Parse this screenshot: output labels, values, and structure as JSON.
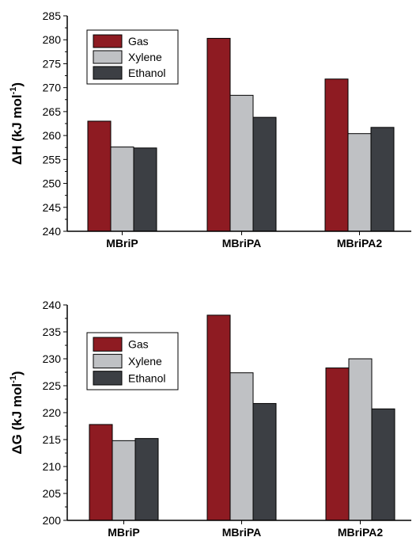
{
  "chart_data": [
    {
      "type": "bar",
      "categories": [
        "MBriP",
        "MBriPA",
        "MBriPA2"
      ],
      "series": [
        {
          "name": "Gas",
          "values": [
            263.0,
            280.3,
            271.8
          ]
        },
        {
          "name": "Xylene",
          "values": [
            257.6,
            268.4,
            260.4
          ]
        },
        {
          "name": "Ethanol",
          "values": [
            257.4,
            263.8,
            261.7
          ]
        }
      ],
      "ylabel": "ΔH (kJ mol⁻¹)",
      "ylabel_main": "ΔH (kJ mol",
      "ylabel_sup": "-1",
      "ylabel_end": ")",
      "ylim": [
        240,
        285
      ],
      "yticks": [
        240,
        245,
        250,
        255,
        260,
        265,
        270,
        275,
        280,
        285
      ],
      "legend_position": "top-left",
      "grid": false
    },
    {
      "type": "bar",
      "categories": [
        "MBriP",
        "MBriPA",
        "MBriPA2"
      ],
      "series": [
        {
          "name": "Gas",
          "values": [
            217.8,
            238.1,
            228.3
          ]
        },
        {
          "name": "Xylene",
          "values": [
            214.8,
            227.4,
            230.0
          ]
        },
        {
          "name": "Ethanol",
          "values": [
            215.2,
            221.7,
            220.7
          ]
        }
      ],
      "ylabel": "ΔG (kJ mol⁻¹)",
      "ylabel_main": "ΔG (kJ mol",
      "ylabel_sup": "-1",
      "ylabel_end": ")",
      "ylim": [
        200,
        240
      ],
      "yticks": [
        200,
        205,
        210,
        215,
        220,
        225,
        230,
        235,
        240
      ],
      "legend_position": "top-left",
      "grid": false
    }
  ],
  "colors": {
    "Gas": "#8e1b22",
    "Xylene": "#bfc1c4",
    "Ethanol": "#3c3f44"
  }
}
